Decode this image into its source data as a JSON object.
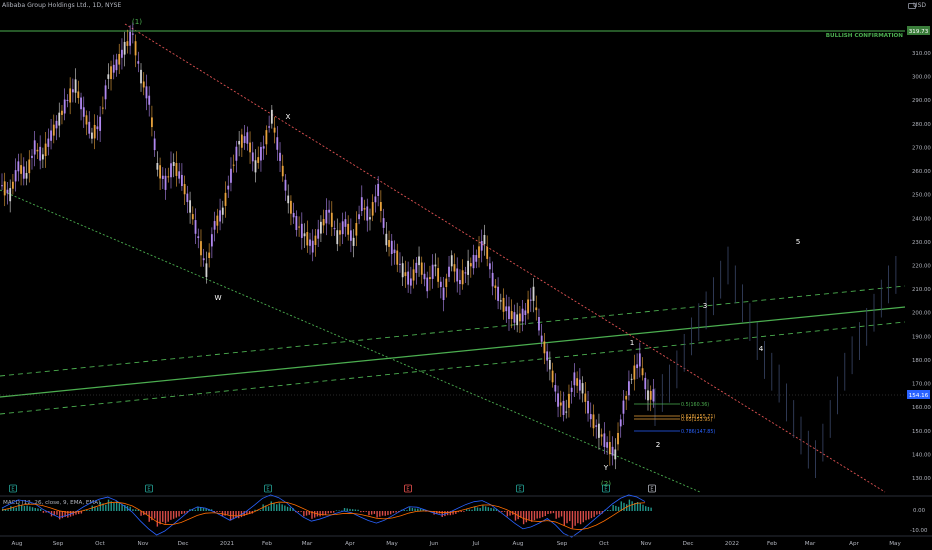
{
  "header": {
    "title": "Alibaba Group Holdings Ltd., 1D, NYSE",
    "currency": "USD"
  },
  "indicator": {
    "label": "MACD (12, 26, close, 9, EMA, EMA)",
    "ticks": [
      "0.00",
      "-10.00"
    ]
  },
  "badges": {
    "current_price": "154.16",
    "confirmation_price": "319.73",
    "confirmation_label": "BULLISH CONFIRMATION"
  },
  "wave_labels": [
    "(1)",
    "X",
    "W",
    "Y",
    "(2)",
    "1",
    "2",
    "3",
    "4",
    "5"
  ],
  "fib_labels": [
    "0.5(160.36)",
    "0.618(155.71)",
    "0.65(153.95)",
    "0.786(147.85)"
  ],
  "event_markers": [
    "E",
    "E",
    "E",
    "E",
    "E",
    "E",
    "E"
  ],
  "chart_data": {
    "type": "line",
    "title": "Alibaba Group Holdings Ltd., 1D, NYSE",
    "ylim": [
      125,
      335
    ],
    "yticks": [
      130,
      140,
      150,
      160,
      170,
      180,
      190,
      200,
      210,
      220,
      230,
      240,
      250,
      260,
      270,
      280,
      290,
      300,
      310
    ],
    "ytick_labels": [
      "130.00",
      "140.00",
      "150.00",
      "160.00",
      "170.00",
      "180.00",
      "190.00",
      "200.00",
      "210.00",
      "220.00",
      "230.00",
      "240.00",
      "250.00",
      "260.00",
      "270.00",
      "280.00",
      "290.00",
      "300.00",
      "310.00"
    ],
    "xtick_labels": [
      "Aug",
      "Sep",
      "Oct",
      "Nov",
      "Dec",
      "2021",
      "Feb",
      "Mar",
      "Apr",
      "May",
      "Jun",
      "Jul",
      "Aug",
      "Sep",
      "Oct",
      "Nov",
      "Dec",
      "2022",
      "Feb",
      "Mar",
      "Apr",
      "May"
    ],
    "grid": false,
    "series": [
      {
        "values": [
          254,
          250,
          262,
          258,
          270,
          266,
          275,
          282,
          290,
          296,
          285,
          275,
          280,
          300,
          305,
          312,
          318,
          300,
          290,
          262,
          255,
          263,
          256,
          245,
          232,
          218,
          237,
          243,
          258,
          272,
          274,
          262,
          270,
          283,
          266,
          248,
          238,
          233,
          228,
          236,
          243,
          232,
          238,
          230,
          246,
          240,
          252,
          231,
          226,
          218,
          213,
          222,
          212,
          220,
          208,
          222,
          213,
          219,
          223,
          231,
          214,
          205,
          200,
          197,
          200,
          208,
          189,
          178,
          163,
          158,
          172,
          168,
          156,
          150,
          144,
          140,
          160,
          172,
          180,
          165
        ]
      }
    ],
    "current_price": 154.16,
    "confirmation_level": 319.73,
    "fib_levels": [
      {
        "ratio": 0.5,
        "price": 160.36
      },
      {
        "ratio": 0.618,
        "price": 155.71
      },
      {
        "ratio": 0.65,
        "price": 153.95
      },
      {
        "ratio": 0.786,
        "price": 147.85
      }
    ],
    "macd": {
      "histogram": [
        0.4,
        0.8,
        1.2,
        0.9,
        0.5,
        -0.3,
        -0.9,
        -1.4,
        -1.1,
        -0.6,
        0.2,
        0.9,
        1.5,
        1.9,
        1.6,
        1.0,
        0.3,
        -0.8,
        -1.8,
        -2.6,
        -2.1,
        -1.3,
        -0.5,
        0.3,
        0.7,
        0.4,
        -0.2,
        -0.9,
        -1.6,
        -1.2,
        -0.6,
        0.2,
        1.1,
        1.6,
        1.3,
        0.7,
        -0.2,
        -0.9,
        -1.3,
        -0.9,
        -0.4,
        0.1,
        0.5,
        0.3,
        -0.2,
        -0.7,
        -1.1,
        -0.8,
        -0.3,
        0.2,
        0.6,
        0.4,
        -0.1,
        -0.6,
        -1.0,
        -0.7,
        -0.2,
        0.3,
        0.7,
        0.9,
        0.5,
        -0.2,
        -0.9,
        -1.6,
        -2.2,
        -1.8,
        -1.2,
        -0.5,
        -1.3,
        -2.4,
        -2.9,
        -2.2,
        -1.4,
        -0.6,
        0.2,
        1.0,
        1.6,
        1.9,
        1.5,
        0.8
      ]
    }
  }
}
